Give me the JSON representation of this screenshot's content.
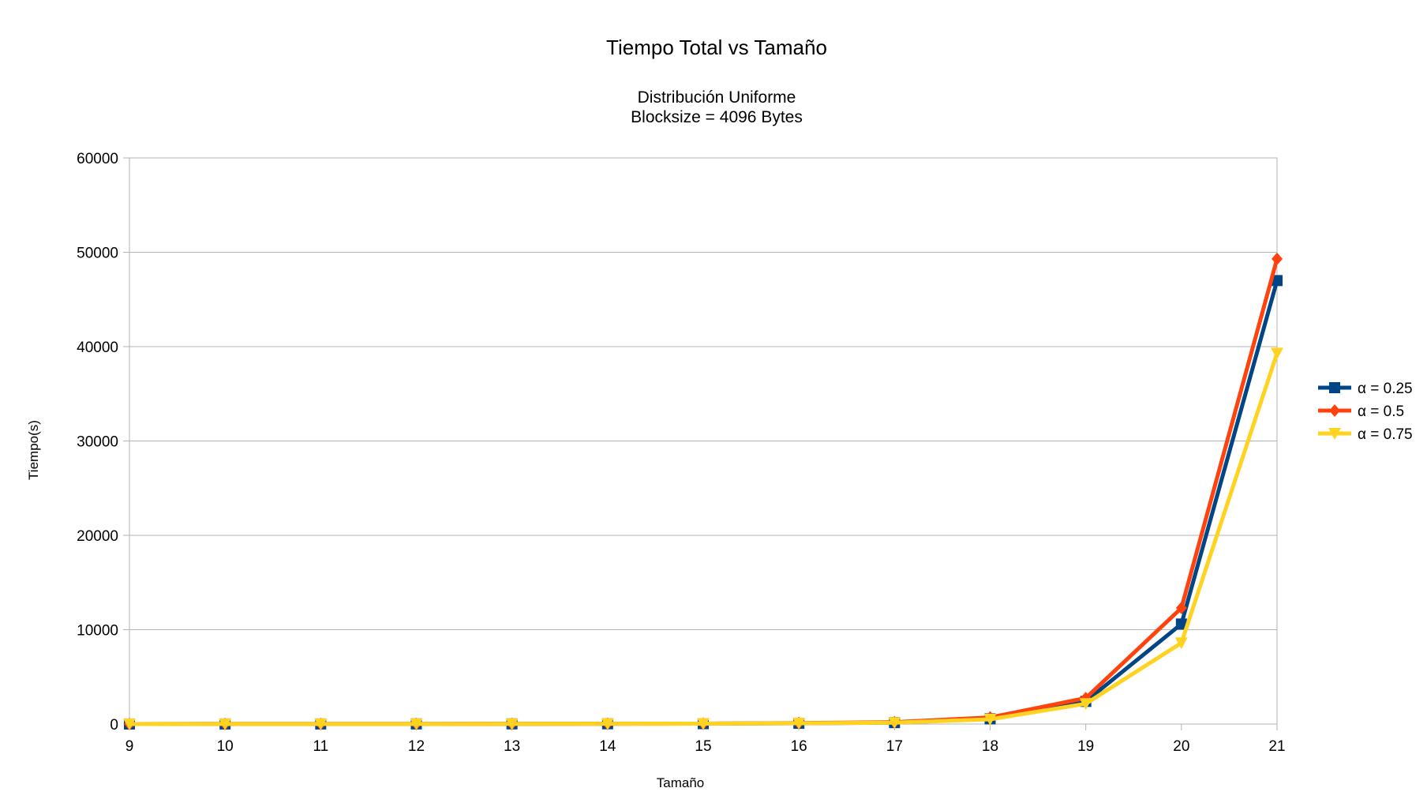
{
  "chart_data": {
    "type": "line",
    "title": "Tiempo Total vs Tamaño",
    "subtitle_lines": [
      "Distribución Uniforme",
      "Blocksize = 4096 Bytes"
    ],
    "xlabel": "Tamaño",
    "ylabel": "Tiempo(s)",
    "categories": [
      "9",
      "10",
      "11",
      "12",
      "13",
      "14",
      "15",
      "16",
      "17",
      "18",
      "19",
      "20",
      "21"
    ],
    "ylim": [
      0,
      60000
    ],
    "yticks": [
      0,
      10000,
      20000,
      30000,
      40000,
      50000,
      60000
    ],
    "ytick_labels": [
      "0",
      "10000",
      "20000",
      "30000",
      "40000",
      "50000",
      "60000"
    ],
    "grid": true,
    "legend_position": "right",
    "series": [
      {
        "name": "α = 0.25",
        "color": "#004586",
        "marker": "square",
        "values": [
          5,
          8,
          10,
          15,
          20,
          30,
          40,
          80,
          150,
          550,
          2400,
          10600,
          47000
        ]
      },
      {
        "name": "α = 0.5",
        "color": "#ff420e",
        "marker": "diamond",
        "values": [
          5,
          8,
          10,
          15,
          20,
          30,
          45,
          100,
          200,
          700,
          2750,
          12300,
          49300
        ]
      },
      {
        "name": "α = 0.75",
        "color": "#ffd320",
        "marker": "triangle-down",
        "values": [
          5,
          8,
          10,
          15,
          20,
          30,
          40,
          80,
          150,
          500,
          2150,
          8600,
          39300
        ]
      }
    ]
  }
}
